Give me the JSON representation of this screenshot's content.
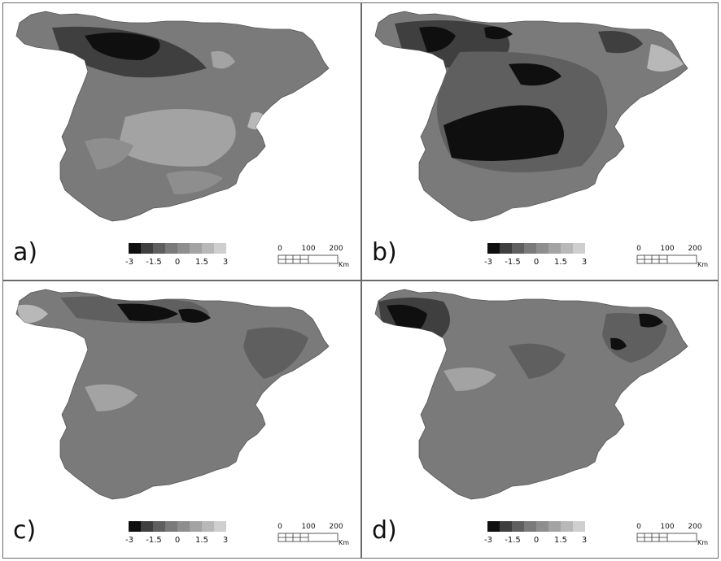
{
  "panels": [
    {
      "id": "a",
      "label": "a)"
    },
    {
      "id": "b",
      "label": "b)"
    },
    {
      "id": "c",
      "label": "c)"
    },
    {
      "id": "d",
      "label": "d)"
    }
  ],
  "legend": {
    "ticks": [
      "-3",
      "-1.5",
      "0",
      "1.5",
      "3"
    ],
    "colors": [
      "#0f0f0f",
      "#3f3f3f",
      "#5f5f5f",
      "#7a7a7a",
      "#8e8e8e",
      "#a3a3a3",
      "#b8b8b8",
      "#cfcfcf"
    ]
  },
  "scale_bar": {
    "ticks": [
      "0",
      "100",
      "200"
    ],
    "unit": "Km"
  }
}
